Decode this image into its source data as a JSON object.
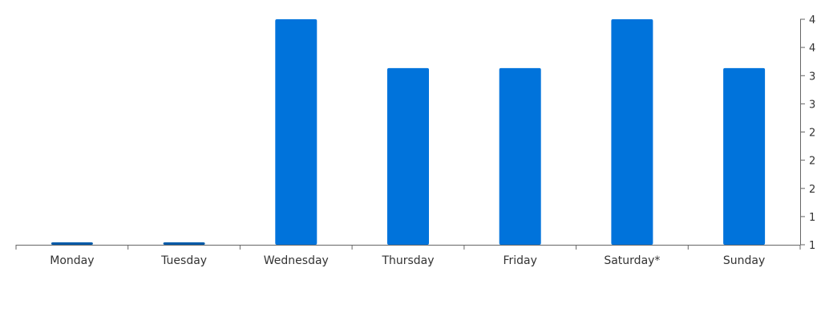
{
  "chart_data": {
    "type": "bar",
    "title": "",
    "xlabel": "",
    "ylabel": "",
    "categories": [
      "Monday",
      "Tuesday",
      "Wednesday",
      "Thursday",
      "Friday",
      "Saturday*",
      "Sunday"
    ],
    "values": [
      1,
      1,
      4,
      3.35,
      3.35,
      4,
      3.35
    ],
    "y_axis_position": "right",
    "y_ticks": [
      1,
      1.5,
      2,
      2.5,
      3,
      3.5,
      4
    ],
    "y_tick_labels": [
      "1",
      "1",
      "2",
      "2",
      "2",
      "3",
      "3",
      "4",
      "4"
    ],
    "y_tick_values": [
      1,
      1.375,
      1.75,
      2.125,
      2.5,
      2.875,
      3.25,
      3.625,
      4
    ],
    "ylim": [
      1,
      4
    ],
    "grid": false,
    "legend": "none",
    "colors": {
      "bar": "#0073db",
      "zero_bar": "#005aa8"
    }
  }
}
